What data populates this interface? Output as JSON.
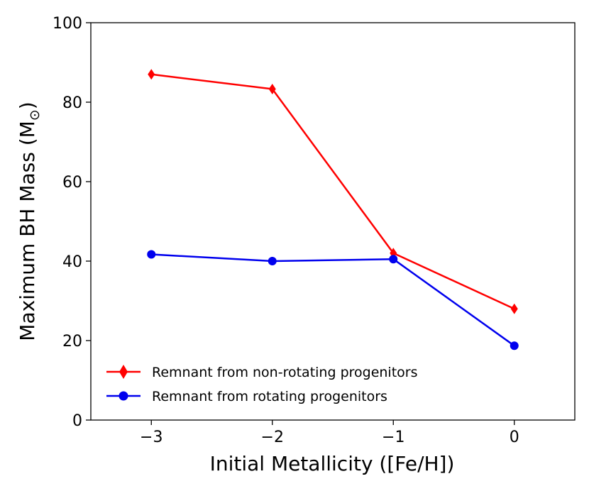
{
  "chart_data": {
    "type": "line",
    "title": "",
    "xlabel": "Initial Metallicity ([Fe/H])",
    "ylabel": "Maximum BH Mass (M",
    "ylabel_sub": "⊙",
    "ylabel_close": ")",
    "xlim": [
      -3.5,
      0.5
    ],
    "ylim": [
      0,
      100
    ],
    "x_ticks": [
      -3,
      -2,
      -1,
      0
    ],
    "x_tick_labels": [
      "−3",
      "−2",
      "−1",
      "0"
    ],
    "y_ticks": [
      0,
      20,
      40,
      60,
      80,
      100
    ],
    "y_tick_labels": [
      "0",
      "20",
      "40",
      "60",
      "80",
      "100"
    ],
    "grid": false,
    "legend_position": "lower-left",
    "series": [
      {
        "name": "Remnant from non-rotating progenitors",
        "color": "#ff0000",
        "marker": "diamond",
        "x": [
          -3,
          -2,
          -1,
          0
        ],
        "values": [
          87.0,
          83.3,
          42.0,
          28.0
        ]
      },
      {
        "name": "Remnant from rotating progenitors",
        "color": "#0000ee",
        "marker": "circle",
        "x": [
          -3,
          -2,
          -1,
          0
        ],
        "values": [
          41.7,
          40.0,
          40.5,
          18.7
        ]
      }
    ]
  }
}
